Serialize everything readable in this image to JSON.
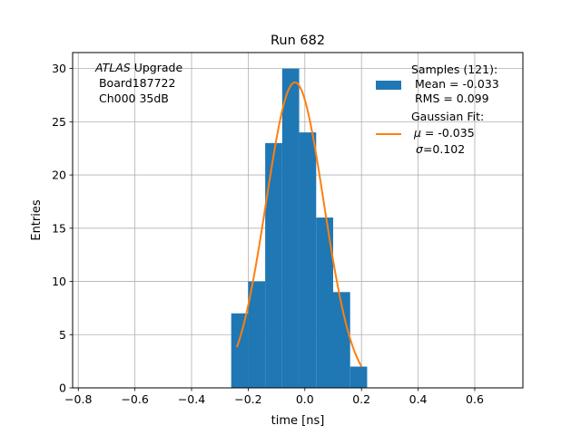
{
  "chart_data": {
    "type": "bar",
    "title": "Run 682",
    "xlabel": "time [ns]",
    "ylabel": "Entries",
    "xlim": [
      -0.82,
      0.77
    ],
    "ylim": [
      0,
      31.5
    ],
    "grid": true,
    "x_ticks": [
      -0.8,
      -0.6,
      -0.4,
      -0.2,
      0.0,
      0.2,
      0.4,
      0.6
    ],
    "x_tick_labels": [
      "−0.8",
      "−0.6",
      "−0.4",
      "−0.2",
      "0.0",
      "0.2",
      "0.4",
      "0.6"
    ],
    "y_ticks": [
      0,
      5,
      10,
      15,
      20,
      25,
      30
    ],
    "y_tick_labels": [
      "0",
      "5",
      "10",
      "15",
      "20",
      "25",
      "30"
    ],
    "bin_edges": [
      -0.26,
      -0.2,
      -0.14,
      -0.08,
      -0.02,
      0.04,
      0.1,
      0.16,
      0.22
    ],
    "counts": [
      7,
      10,
      23,
      30,
      24,
      16,
      9,
      2
    ],
    "bar_color": "#1f77b4",
    "fit": {
      "name": "Gaussian Fit",
      "amplitude": 28.7,
      "mu": -0.035,
      "sigma": 0.102,
      "x_range": [
        -0.24,
        0.2
      ],
      "color": "#ff7f0e"
    },
    "annotation": {
      "italic": "ATLAS",
      "line1_rest": " Upgrade",
      "line2": " Board187722",
      "line3": " Ch000 35dB"
    },
    "legend": {
      "placement": "top-right",
      "samples_title": "Samples (121):",
      "samples_mean": " Mean = -0.033",
      "samples_rms": " RMS = 0.099",
      "fit_title": "Gaussian Fit:",
      "fit_mu_symbol": "μ",
      "fit_mu_rest": " = -0.035",
      "fit_sigma_symbol": "σ",
      "fit_sigma_rest": "=0.102"
    }
  }
}
